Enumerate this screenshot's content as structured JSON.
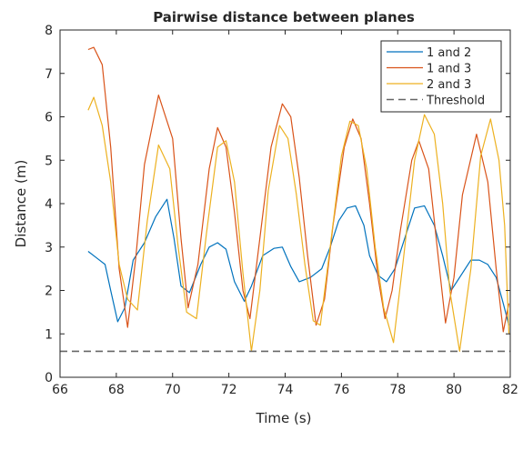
{
  "chart_data": {
    "type": "line",
    "title": "Pairwise distance between planes",
    "xlabel": "Time (s)",
    "ylabel": "Distance (m)",
    "xlim": [
      66,
      82
    ],
    "ylim": [
      0,
      8
    ],
    "xticks": [
      66,
      68,
      70,
      72,
      74,
      76,
      78,
      80,
      82
    ],
    "yticks": [
      0,
      1,
      2,
      3,
      4,
      5,
      6,
      7,
      8
    ],
    "grid": false,
    "legend_position": "top-right",
    "series": [
      {
        "name": "1 and 2",
        "color": "#0072BD",
        "x": [
          67.0,
          67.3,
          67.6,
          67.8,
          68.05,
          68.3,
          68.6,
          69.0,
          69.4,
          69.8,
          70.05,
          70.3,
          70.6,
          71.0,
          71.3,
          71.6,
          71.9,
          72.2,
          72.55,
          72.8,
          73.2,
          73.6,
          73.9,
          74.2,
          74.5,
          74.9,
          75.3,
          75.6,
          75.9,
          76.2,
          76.5,
          76.8,
          77.0,
          77.3,
          77.6,
          77.9,
          78.3,
          78.6,
          78.95,
          79.3,
          79.6,
          79.9,
          80.3,
          80.6,
          80.9,
          81.2,
          81.5,
          81.75,
          81.95
        ],
        "y": [
          2.9,
          2.75,
          2.6,
          2.0,
          1.28,
          1.6,
          2.7,
          3.1,
          3.7,
          4.1,
          3.2,
          2.1,
          1.95,
          2.6,
          3.0,
          3.1,
          2.95,
          2.2,
          1.75,
          2.1,
          2.8,
          2.97,
          3.0,
          2.55,
          2.2,
          2.3,
          2.5,
          3.0,
          3.6,
          3.9,
          3.95,
          3.5,
          2.8,
          2.35,
          2.2,
          2.5,
          3.3,
          3.9,
          3.95,
          3.5,
          2.8,
          2.0,
          2.4,
          2.7,
          2.7,
          2.6,
          2.3,
          1.7,
          1.2
        ]
      },
      {
        "name": "1 and 3",
        "color": "#D95319",
        "x": [
          67.0,
          67.2,
          67.5,
          67.8,
          68.1,
          68.4,
          68.7,
          69.0,
          69.5,
          70.0,
          70.3,
          70.55,
          70.9,
          71.3,
          71.6,
          71.9,
          72.2,
          72.5,
          72.75,
          73.1,
          73.5,
          73.9,
          74.2,
          74.5,
          74.8,
          75.1,
          75.4,
          75.7,
          76.1,
          76.4,
          76.7,
          77.0,
          77.3,
          77.55,
          77.8,
          78.1,
          78.5,
          78.75,
          79.1,
          79.4,
          79.7,
          80.0,
          80.3,
          80.8,
          81.2,
          81.5,
          81.75,
          81.95
        ],
        "y": [
          7.55,
          7.6,
          7.2,
          5.3,
          2.5,
          1.15,
          2.8,
          4.9,
          6.5,
          5.5,
          3.2,
          1.6,
          2.6,
          4.8,
          5.75,
          5.3,
          3.8,
          2.0,
          1.35,
          3.2,
          5.3,
          6.3,
          6.0,
          4.6,
          2.8,
          1.2,
          1.8,
          3.5,
          5.3,
          5.95,
          5.5,
          4.0,
          2.3,
          1.35,
          2.0,
          3.4,
          5.0,
          5.45,
          4.8,
          3.0,
          1.25,
          2.3,
          4.2,
          5.6,
          4.5,
          2.5,
          1.05,
          1.7
        ]
      },
      {
        "name": "2 and 3",
        "color": "#EDB120",
        "x": [
          67.0,
          67.2,
          67.5,
          67.8,
          68.1,
          68.4,
          68.75,
          69.1,
          69.5,
          69.9,
          70.2,
          70.5,
          70.85,
          71.2,
          71.6,
          71.9,
          72.2,
          72.5,
          72.8,
          73.1,
          73.4,
          73.8,
          74.1,
          74.4,
          74.7,
          75.0,
          75.25,
          75.6,
          76.0,
          76.3,
          76.6,
          76.9,
          77.2,
          77.5,
          77.85,
          78.2,
          78.6,
          78.95,
          79.3,
          79.6,
          79.85,
          80.2,
          80.6,
          80.95,
          81.3,
          81.6,
          81.8,
          81.95
        ],
        "y": [
          6.15,
          6.45,
          5.8,
          4.5,
          2.6,
          1.8,
          1.55,
          3.6,
          5.35,
          4.8,
          3.0,
          1.5,
          1.35,
          3.3,
          5.3,
          5.45,
          4.5,
          2.4,
          0.6,
          2.0,
          4.3,
          5.8,
          5.5,
          4.2,
          2.6,
          1.3,
          1.2,
          3.0,
          5.1,
          5.9,
          5.8,
          4.8,
          3.0,
          1.6,
          0.8,
          2.7,
          5.0,
          6.05,
          5.6,
          4.0,
          2.0,
          0.6,
          2.5,
          5.1,
          5.95,
          5.0,
          3.5,
          1.0
        ]
      },
      {
        "name": "Threshold",
        "color": "#666666",
        "dashed": true,
        "x": [
          66,
          82
        ],
        "y": [
          0.6,
          0.6
        ]
      }
    ]
  }
}
